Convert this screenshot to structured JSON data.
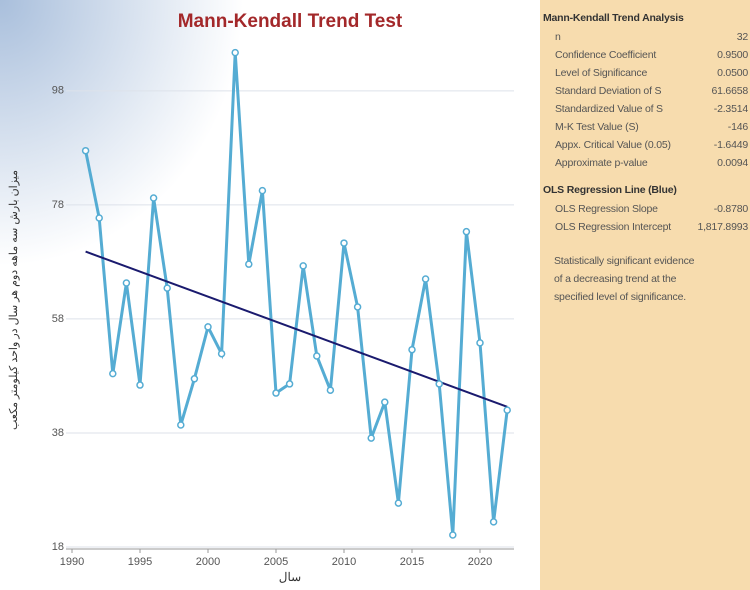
{
  "chart_data": {
    "type": "line",
    "title": "Mann-Kendall Trend Test",
    "x_label": "سال",
    "y_label": "میزان بارش سه ماهه دوم هر سال در واحد کیلومتر مکعب",
    "x": [
      1991,
      1992,
      1993,
      1994,
      1995,
      1996,
      1997,
      1998,
      1999,
      2000,
      2001,
      2002,
      2003,
      2004,
      2005,
      2006,
      2007,
      2008,
      2009,
      2010,
      2011,
      2012,
      2013,
      2014,
      2015,
      2016,
      2017,
      2018,
      2019,
      2020,
      2021,
      2022
    ],
    "series": [
      {
        "color": "#55acd3",
        "values": [
          87.5,
          75.7,
          48.4,
          64.3,
          46.4,
          79.2,
          63.4,
          39.4,
          47.5,
          56.6,
          51.9,
          104.7,
          67.6,
          80.5,
          45.0,
          46.6,
          67.3,
          51.5,
          45.5,
          71.3,
          60.1,
          37.1,
          43.4,
          25.7,
          52.6,
          65.0,
          46.6,
          20.1,
          73.3,
          53.8,
          22.4,
          42.0
        ]
      }
    ],
    "trend_line": {
      "color": "#1a1a6e",
      "slope": -0.878,
      "intercept": 1817.8993
    },
    "xlim": [
      1990,
      2022.5
    ],
    "xticks": [
      1990,
      1995,
      2000,
      2005,
      2010,
      2015,
      2020
    ],
    "ylim": [
      18,
      112
    ],
    "yticks": [
      18,
      38,
      58,
      78,
      98
    ],
    "grid": true
  },
  "panel": {
    "sections": [
      {
        "title": "Mann-Kendall Trend Analysis",
        "rows": [
          {
            "label": "n",
            "value": "32"
          },
          {
            "label": "Confidence Coefficient",
            "value": "0.9500"
          },
          {
            "label": "Level of Significance",
            "value": "0.0500"
          },
          {
            "label": "Standard Deviation of S",
            "value": "61.6658"
          },
          {
            "label": "Standardized Value of S",
            "value": "-2.3514"
          },
          {
            "label": "M-K Test Value (S)",
            "value": "-146"
          },
          {
            "label": "Appx. Critical Value (0.05)",
            "value": "-1.6449"
          },
          {
            "label": "Approximate p-value",
            "value": "0.0094"
          }
        ]
      },
      {
        "title": "OLS Regression Line (Blue)",
        "rows": [
          {
            "label": "OLS Regression Slope",
            "value": "-0.8780"
          },
          {
            "label": "OLS Regression Intercept",
            "value": "1,817.8993"
          }
        ]
      }
    ],
    "note": [
      "Statistically significant evidence",
      "of a decreasing trend at the",
      "specified level of significance."
    ]
  }
}
